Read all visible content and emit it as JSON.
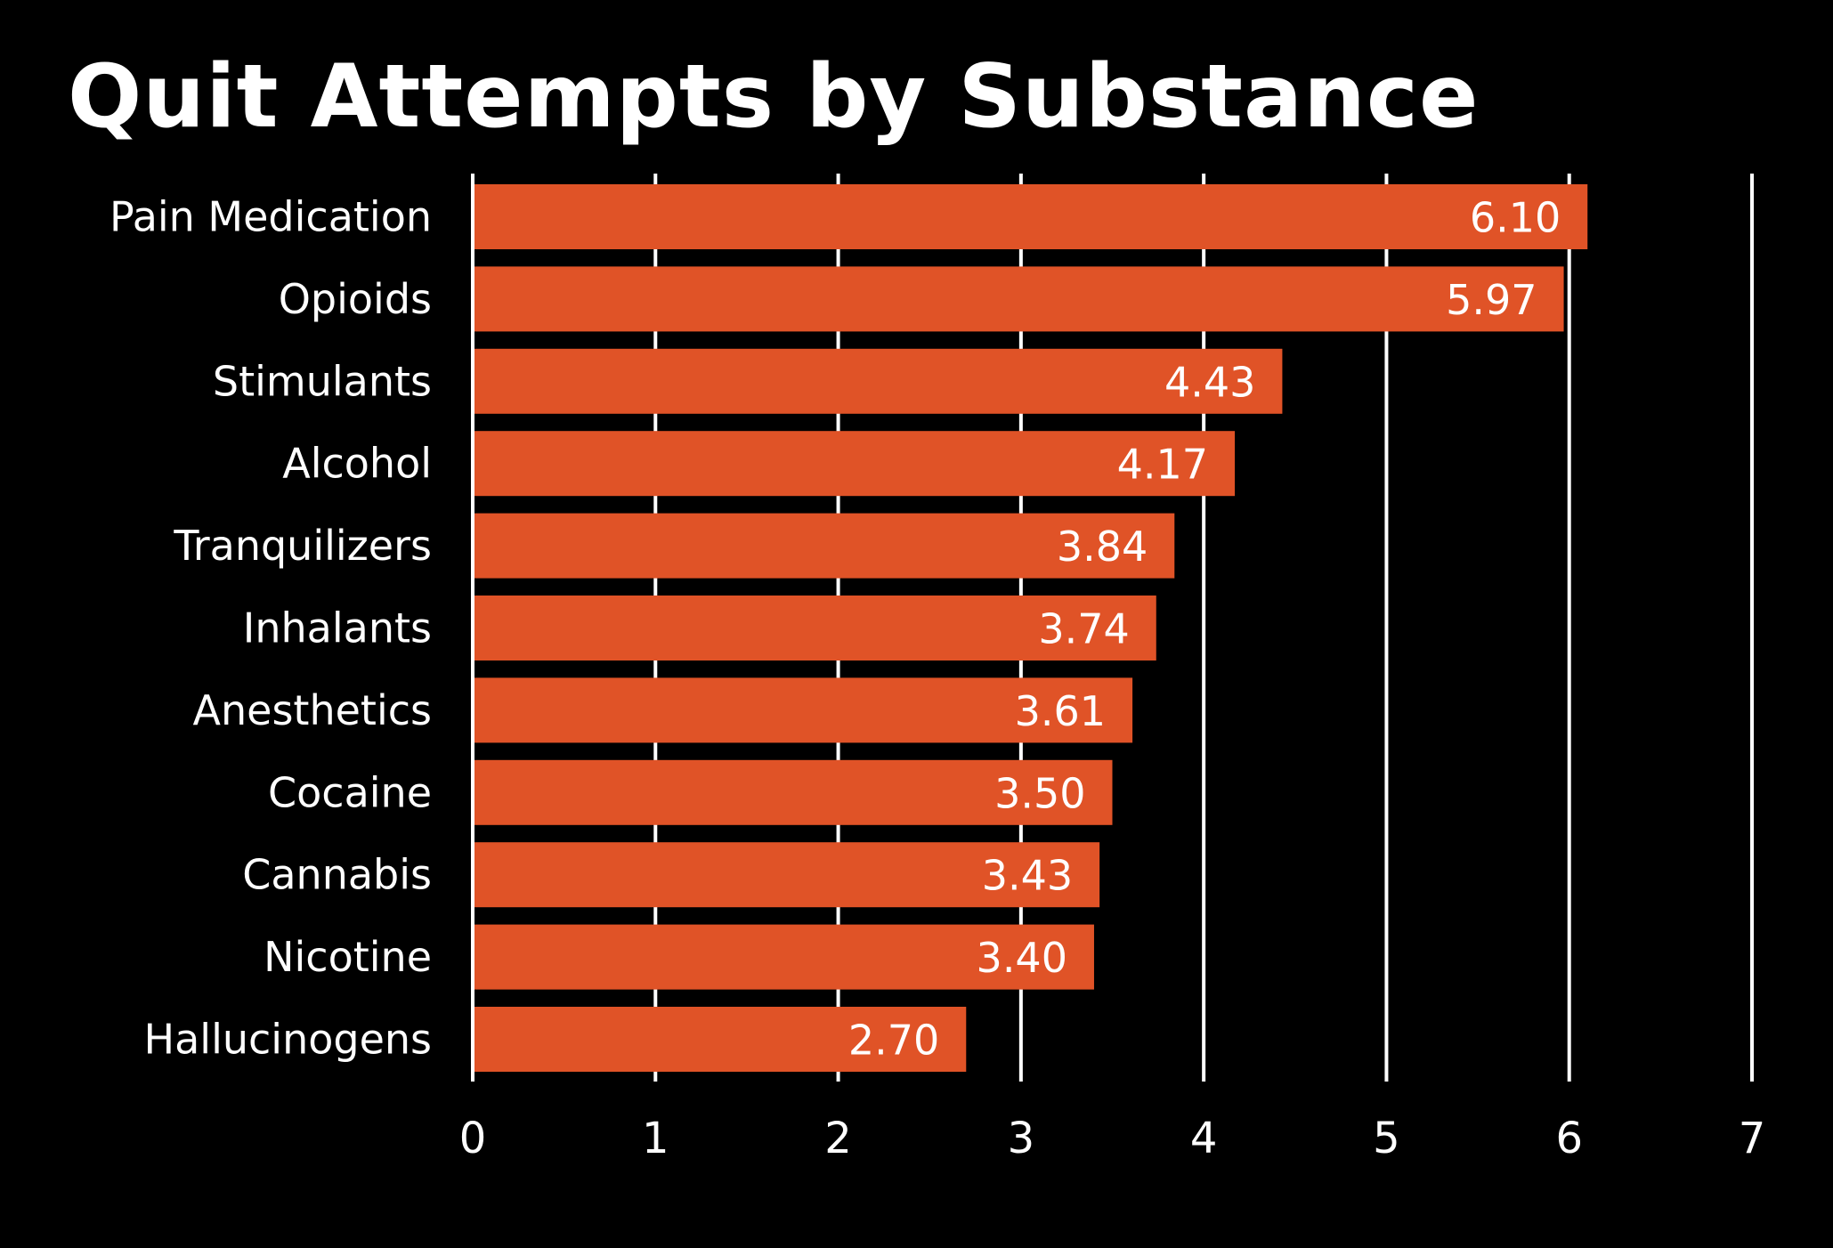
{
  "chart_data": {
    "type": "bar",
    "orientation": "horizontal",
    "title": "Quit Attempts by Substance",
    "xlabel": "",
    "ylabel": "",
    "categories": [
      "Pain Medication",
      "Opioids",
      "Stimulants",
      "Alcohol",
      "Tranquilizers",
      "Inhalants",
      "Anesthetics",
      "Cocaine",
      "Cannabis",
      "Nicotine",
      "Hallucinogens"
    ],
    "values": [
      6.1,
      5.97,
      4.43,
      4.17,
      3.84,
      3.74,
      3.61,
      3.5,
      3.43,
      3.4,
      2.7
    ],
    "value_labels": [
      "6.10",
      "5.97",
      "4.43",
      "4.17",
      "3.84",
      "3.74",
      "3.61",
      "3.50",
      "3.43",
      "3.40",
      "2.70"
    ],
    "xlim": [
      0,
      7
    ],
    "xticks": [
      "0",
      "1",
      "2",
      "3",
      "4",
      "5",
      "6",
      "7"
    ],
    "grid": true,
    "legend": "none",
    "colors": {
      "background": "#000000",
      "bar": "#e05327",
      "text": "#ffffff",
      "grid": "#ffffff"
    }
  }
}
